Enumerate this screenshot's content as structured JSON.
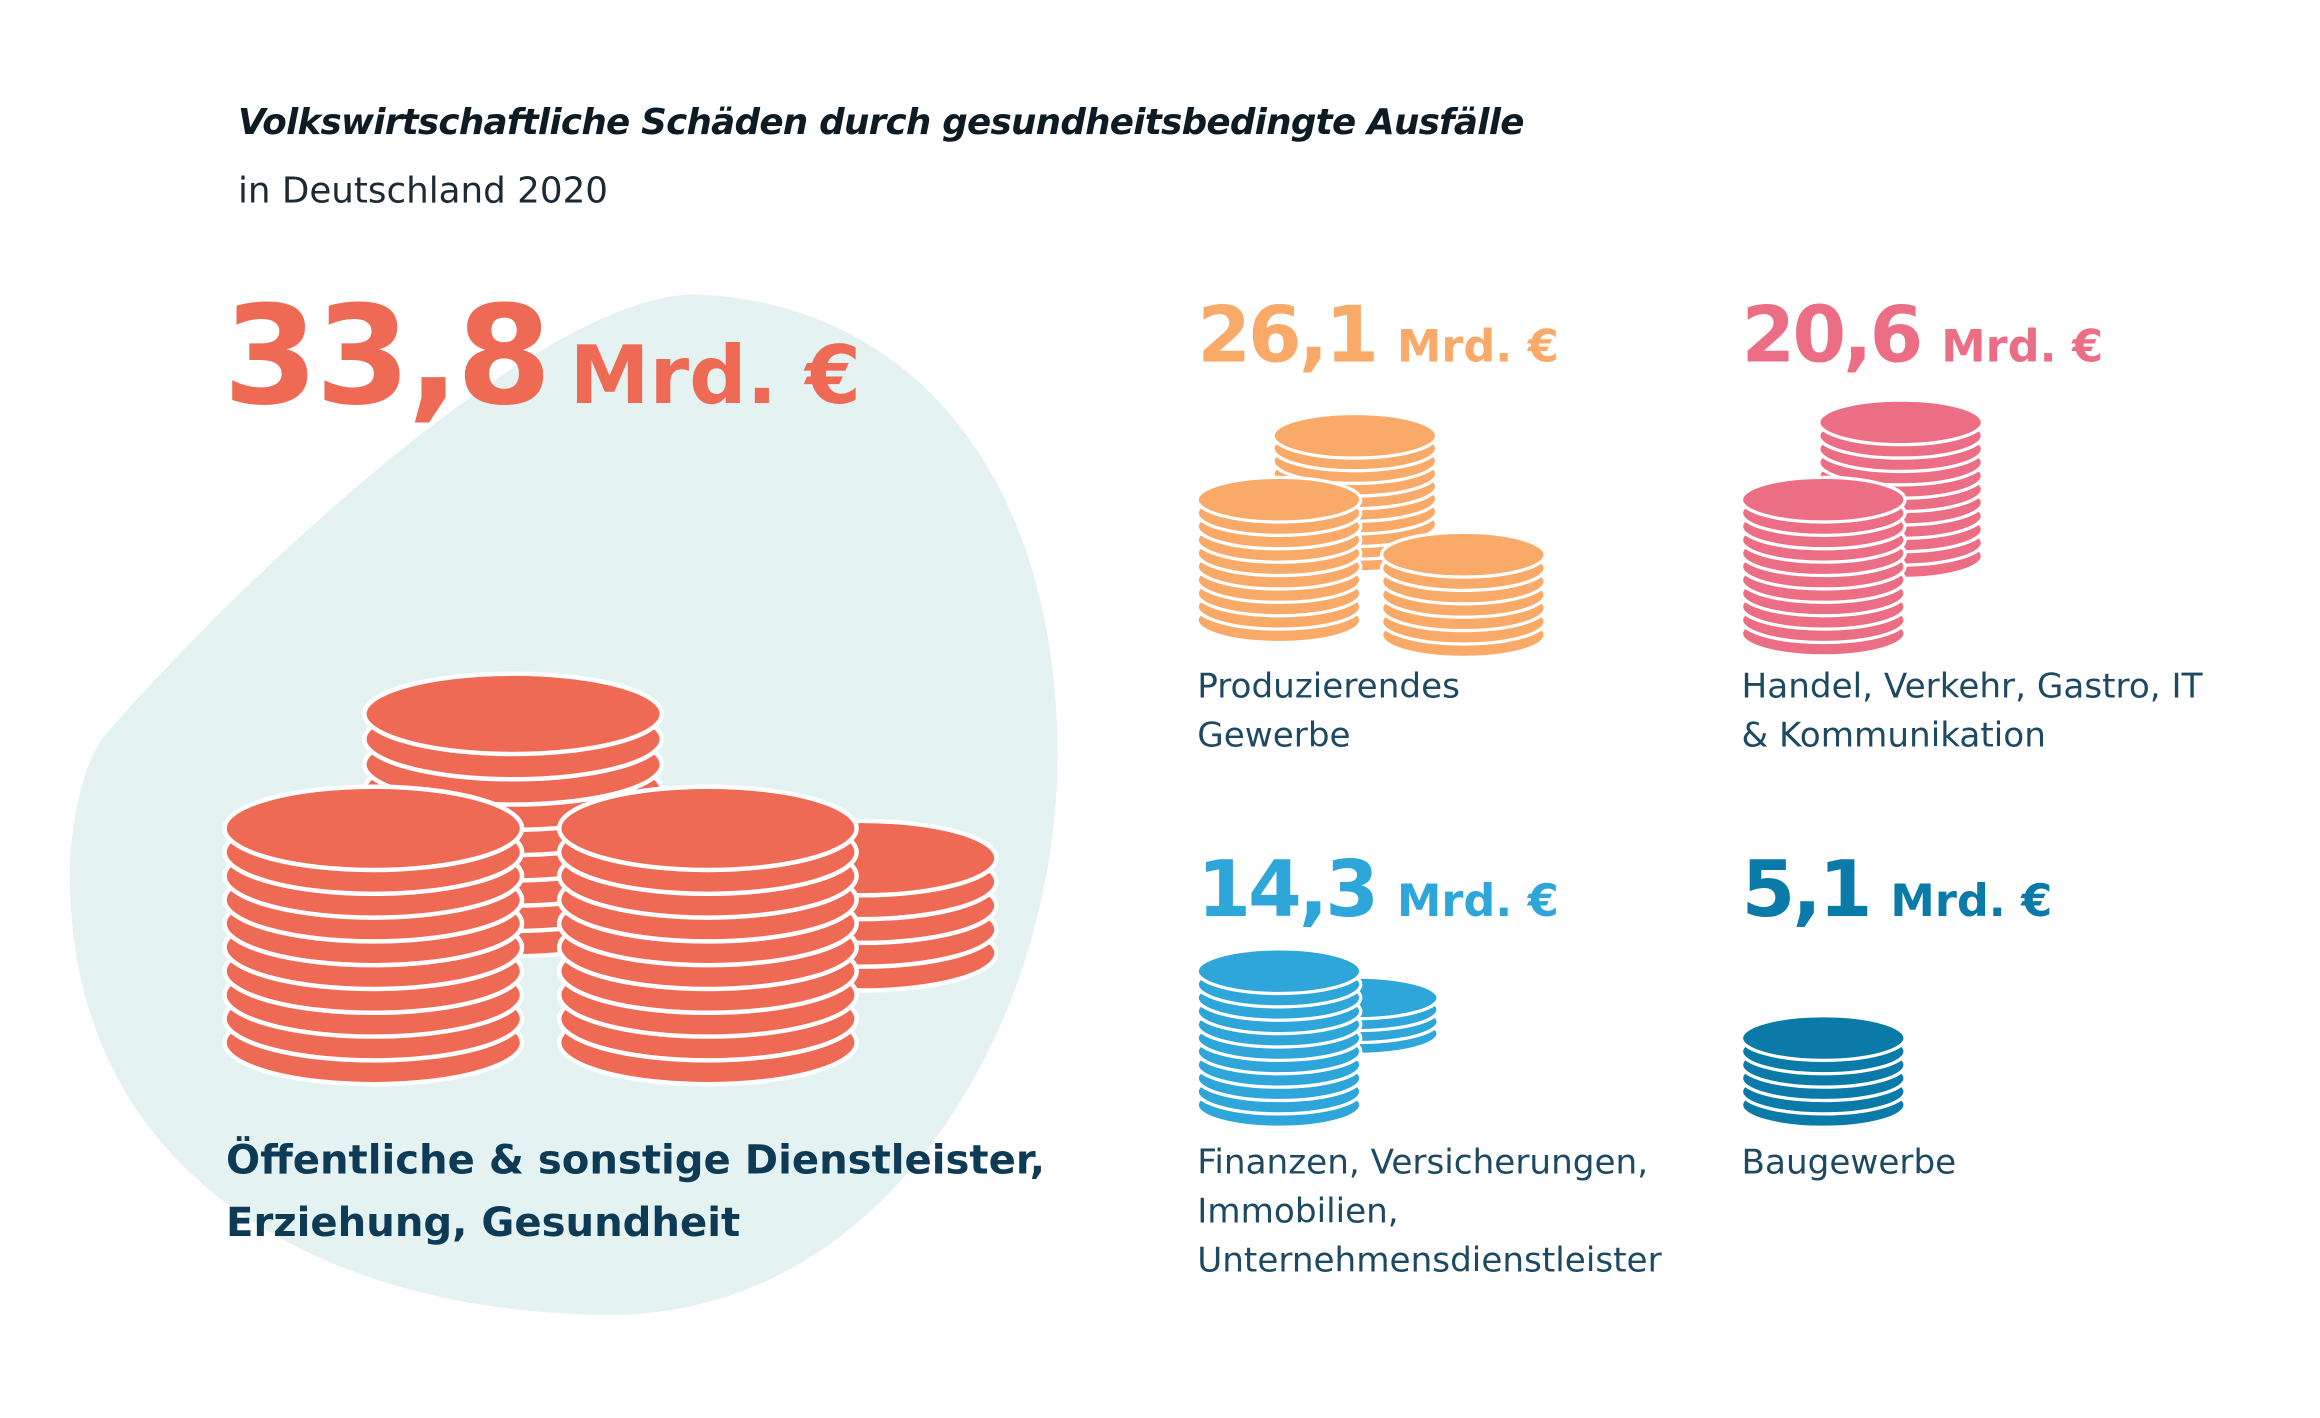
{
  "header": {
    "title": "Volkswirtschaftliche Schäden durch gesundheitsbedingte Ausfälle",
    "subtitle": "in Deutschland 2020"
  },
  "sectors": [
    {
      "value": "33,8",
      "unit": "Mrd. €",
      "label": "Öffentliche & sonstige Dienstleister, Erziehung, Gesundheit",
      "color": "#EE6A55",
      "icon": "coin-stacks-icon"
    },
    {
      "value": "26,1",
      "unit": "Mrd. €",
      "label": "Produzierendes Gewerbe",
      "color": "#F9A968",
      "icon": "coin-stacks-icon"
    },
    {
      "value": "20,6",
      "unit": "Mrd. €",
      "label": "Handel, Verkehr, Gastro, IT & Kommunikation",
      "color": "#EC6E85",
      "icon": "coin-stacks-icon"
    },
    {
      "value": "14,3",
      "unit": "Mrd. €",
      "label": "Finanzen, Versicherungen, Immobilien, Unternehmensdienstleister",
      "color": "#2EA6D9",
      "icon": "coin-stacks-icon"
    },
    {
      "value": "5,1",
      "unit": "Mrd. €",
      "label": "Baugewerbe",
      "color": "#0A7AA8",
      "icon": "coin-stack-icon"
    }
  ],
  "colors": {
    "blob": "#E4F2F1"
  }
}
